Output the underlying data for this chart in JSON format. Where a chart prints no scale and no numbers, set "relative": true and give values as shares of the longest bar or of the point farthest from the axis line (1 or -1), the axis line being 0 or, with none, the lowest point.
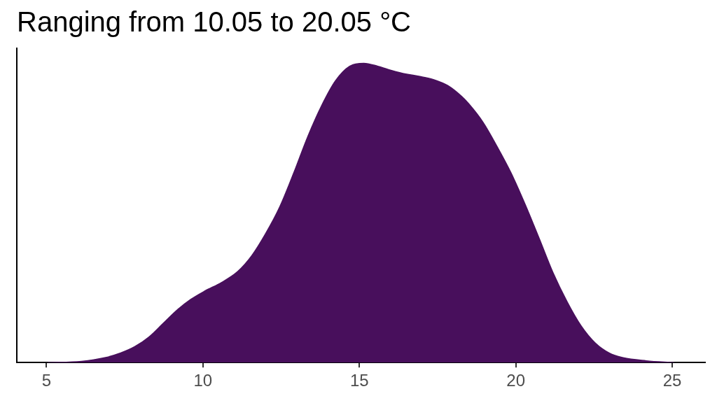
{
  "chart_data": {
    "type": "area",
    "title": "Ranging from 10.05 to 20.05 °C",
    "x": [
      5.05,
      6.12,
      6.86,
      7.37,
      7.82,
      8.27,
      8.72,
      9.17,
      9.61,
      10.06,
      10.6,
      11.11,
      11.56,
      12.0,
      12.45,
      12.9,
      13.35,
      13.8,
      14.24,
      14.69,
      15.14,
      15.59,
      16.03,
      16.48,
      16.93,
      17.38,
      17.83,
      18.27,
      18.5,
      18.95,
      19.4,
      19.85,
      20.3,
      20.75,
      21.19,
      21.64,
      22.09,
      22.54,
      22.98,
      23.43,
      24.17,
      25.05
    ],
    "values": [
      0,
      0.004,
      0.016,
      0.032,
      0.053,
      0.085,
      0.13,
      0.175,
      0.211,
      0.239,
      0.268,
      0.304,
      0.357,
      0.43,
      0.519,
      0.633,
      0.755,
      0.86,
      0.942,
      0.99,
      1.0,
      0.99,
      0.976,
      0.964,
      0.956,
      0.945,
      0.925,
      0.889,
      0.864,
      0.803,
      0.722,
      0.633,
      0.528,
      0.414,
      0.3,
      0.203,
      0.122,
      0.065,
      0.032,
      0.016,
      0.006,
      0
    ],
    "color": "#480f5c",
    "relative": true,
    "marker": "none",
    "xlim": [
      4.05,
      26.05
    ],
    "xticks": [
      5,
      10,
      15,
      20,
      25
    ]
  }
}
